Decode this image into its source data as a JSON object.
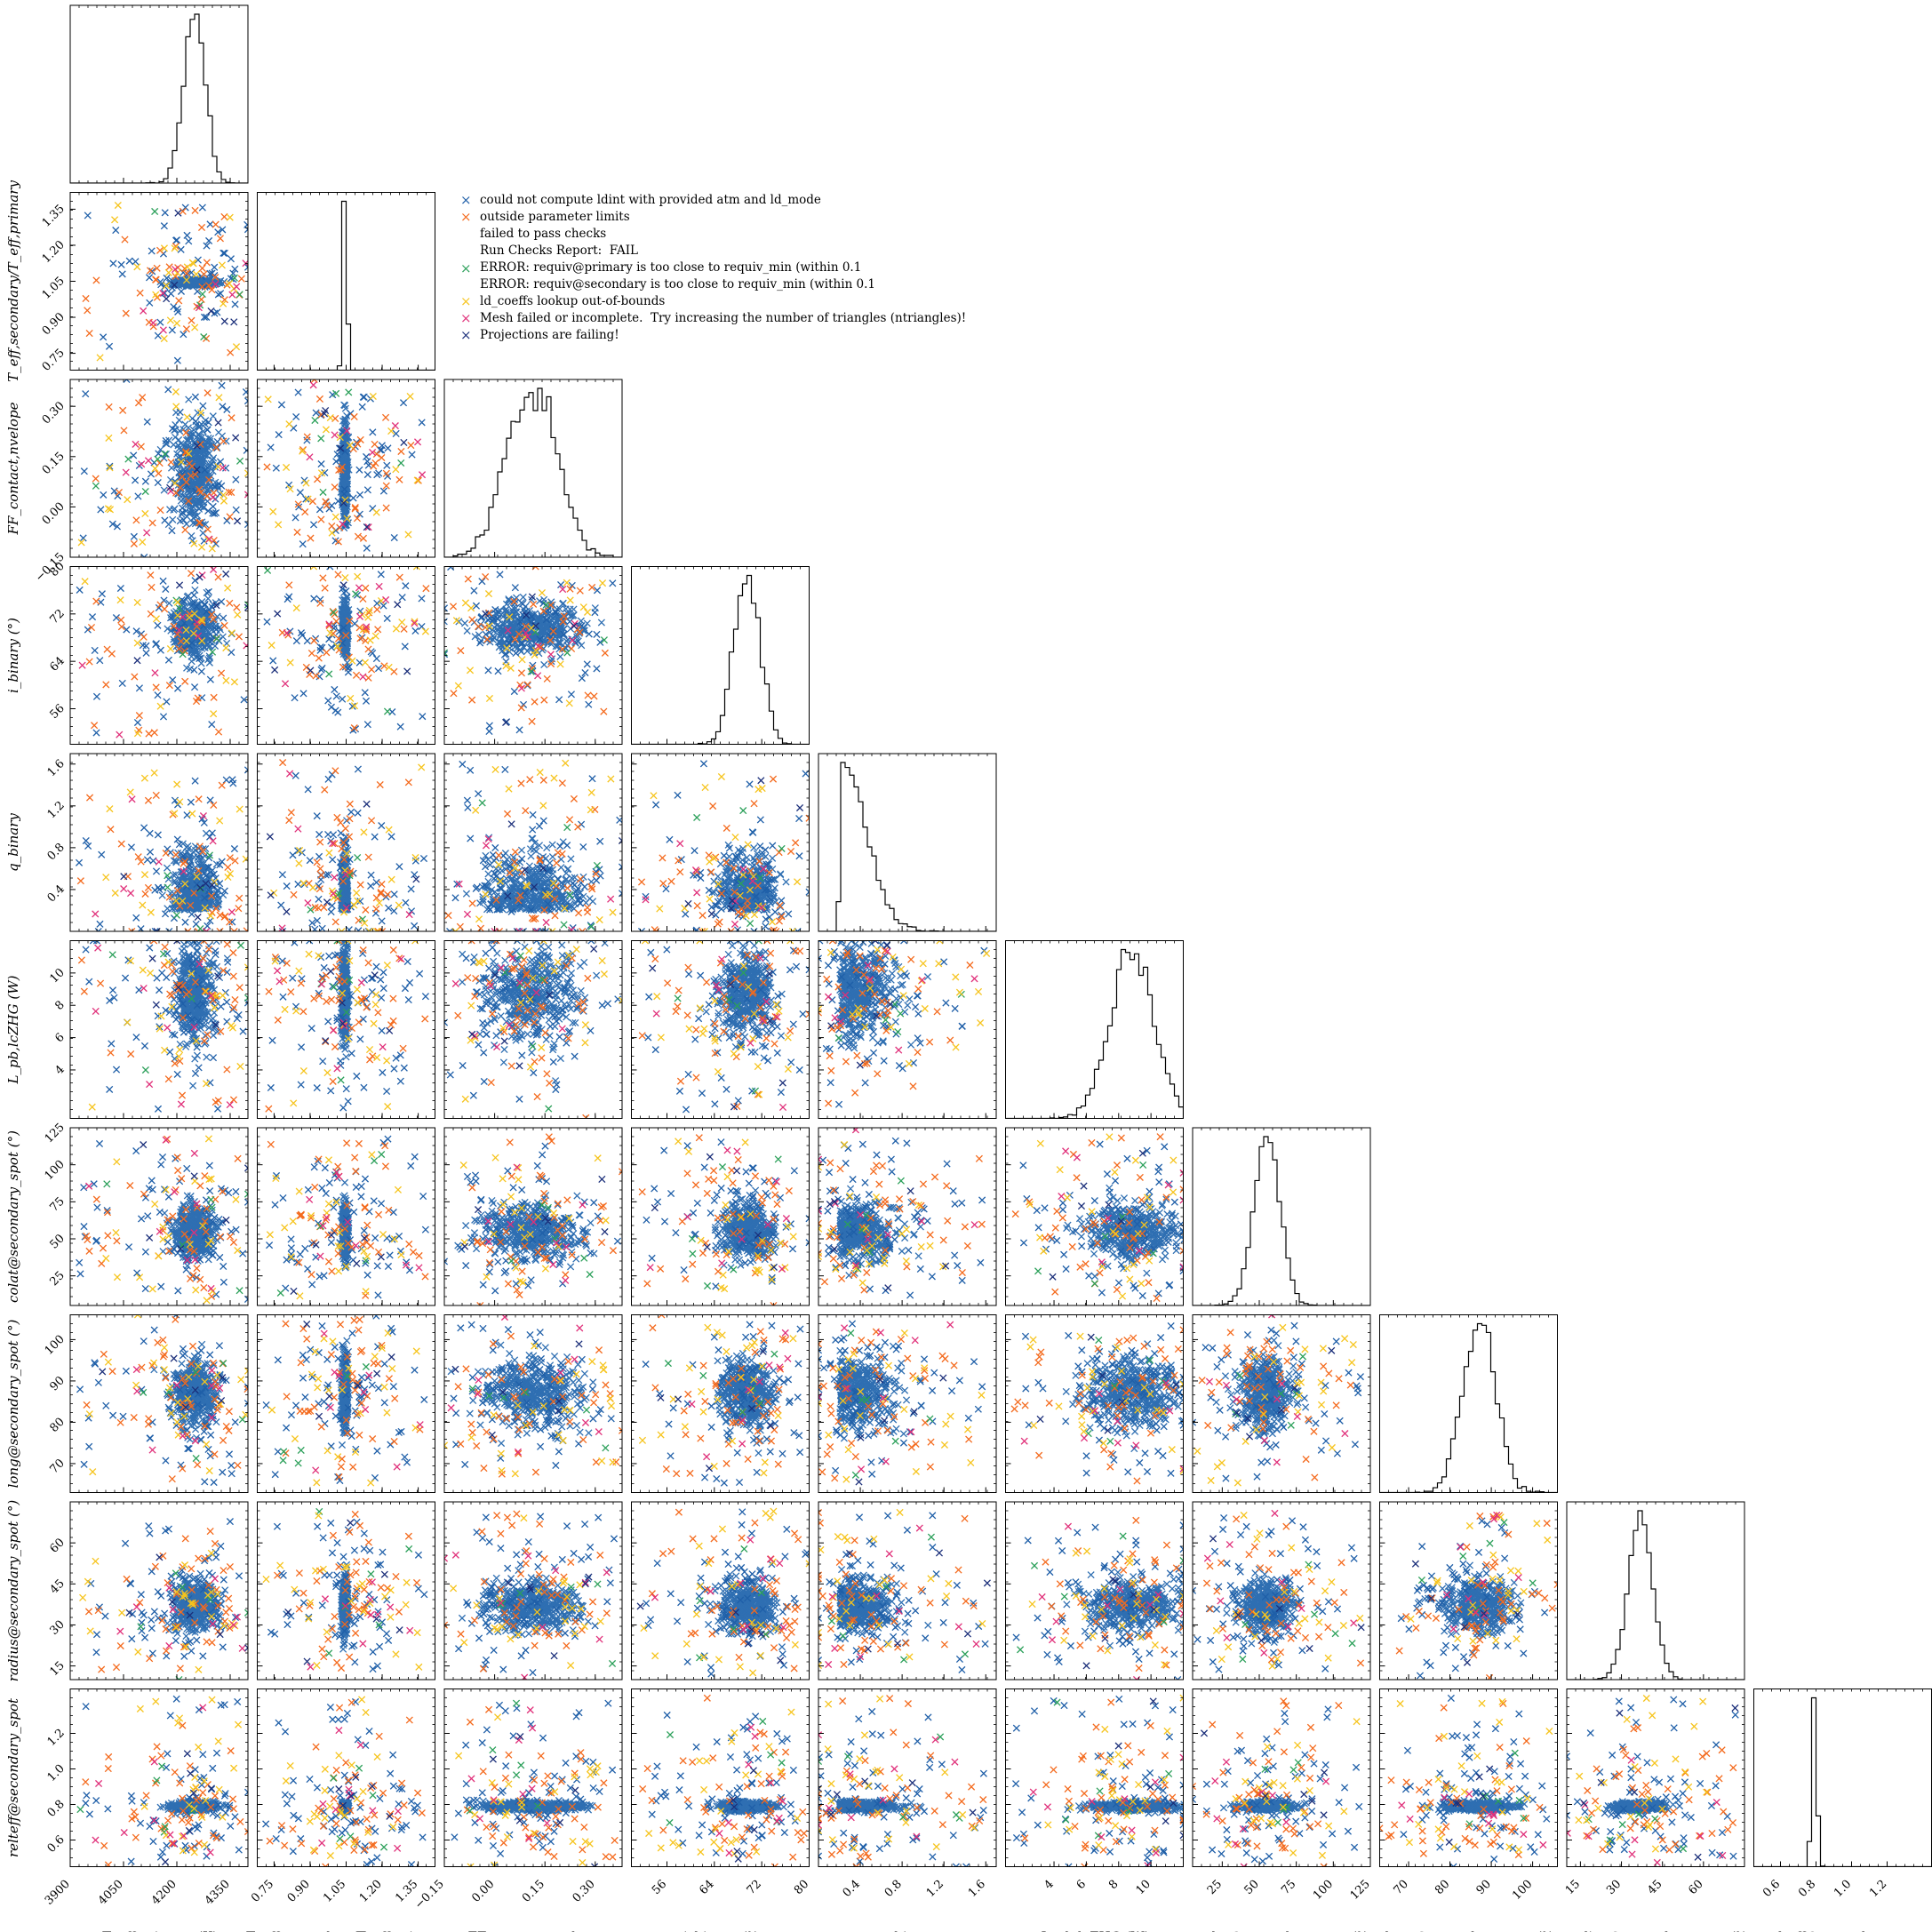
{
  "chart_data": {
    "type": "scatter",
    "kind": "corner-plot",
    "grid": false,
    "parameters": [
      {
        "key": "teff_primary",
        "label": "T_eff,primary (K)",
        "lim": [
          3900,
          4400
        ],
        "ticks": [
          3900,
          4050,
          4200,
          4350
        ]
      },
      {
        "key": "teff_ratio",
        "label": "T_eff,secondary/T_eff,primary",
        "lim": [
          0.68,
          1.42
        ],
        "ticks": [
          0.75,
          0.9,
          1.05,
          1.2,
          1.35
        ]
      },
      {
        "key": "ff",
        "label": "FF_contact,nvelope",
        "lim": [
          -0.15,
          0.38
        ],
        "ticks": [
          -0.15,
          0.0,
          0.15,
          0.3
        ]
      },
      {
        "key": "incl",
        "label": "i_binary (°)",
        "lim": [
          50,
          80
        ],
        "ticks": [
          56,
          64,
          72,
          80
        ]
      },
      {
        "key": "q",
        "label": "q_binary",
        "lim": [
          0.0,
          1.7
        ],
        "ticks": [
          0.4,
          0.8,
          1.2,
          1.6
        ]
      },
      {
        "key": "pb",
        "label": "L_pb,lcZHG (W)",
        "lim": [
          1,
          12
        ],
        "ticks": [
          4,
          6,
          8,
          10
        ]
      },
      {
        "key": "colat",
        "label": "colat@secondary_spot (°)",
        "lim": [
          5,
          125
        ],
        "ticks": [
          25,
          50,
          75,
          100,
          125
        ]
      },
      {
        "key": "long",
        "label": "long@secondary_spot (°)",
        "lim": [
          63,
          106
        ],
        "ticks": [
          70,
          80,
          90,
          100
        ]
      },
      {
        "key": "radius",
        "label": "radius@secondary_spot (°)",
        "lim": [
          10,
          75
        ],
        "ticks": [
          15,
          30,
          45,
          60
        ]
      },
      {
        "key": "relteff",
        "label": "relteff@secondary_spot",
        "lim": [
          0.45,
          1.45
        ],
        "ticks": [
          0.6,
          0.8,
          1.0,
          1.2
        ]
      }
    ],
    "diag_tick_labels": {
      "teff_ratio": [
        "1.35",
        "1.20",
        "1.05",
        "0.90",
        "0.75"
      ],
      "ff": [
        "0.30",
        "0.15",
        "0.00",
        "−0.15"
      ],
      "incl": [
        "80",
        "72",
        "64",
        "56"
      ],
      "q": [
        "1.6",
        "1.2",
        "0.8",
        "0.4"
      ],
      "pb": [
        "10",
        "8",
        "6",
        "4"
      ],
      "colat": [
        "125",
        "100",
        "75",
        "50",
        "25"
      ],
      "long": [
        "100",
        "90",
        "80",
        "70"
      ],
      "radius": [
        "60",
        "45",
        "30",
        "15"
      ],
      "relteff": [
        "1.2",
        "1.0",
        "0.8",
        "0.6"
      ]
    },
    "row_labels": [
      "T_eff,secondary/T_eff,primary",
      "FF_contact,nvelope",
      "i_binary (°)",
      "q_binary",
      "L_pb,lcZHG (W)",
      "colat@secondary_spot (°)",
      "long@secondary_spot (°)",
      "radius@secondary_spot (°)",
      "relteff@secondary_spot"
    ],
    "marginals": {
      "teff_primary": {
        "center": 4250,
        "width": 30,
        "shape": "single-peak"
      },
      "teff_ratio": {
        "center": 1.045,
        "width": 0.006,
        "shape": "single-peak"
      },
      "ff": {
        "center": 0.11,
        "width": 0.06,
        "shape": "double-peak"
      },
      "incl": {
        "center": 69.5,
        "width": 1.8,
        "shape": "double-peak"
      },
      "q": {
        "center": 0.25,
        "width": 0.15,
        "shape": "skewed"
      },
      "pb": {
        "center": 8.8,
        "width": 1.4,
        "shape": "multi-peak"
      },
      "colat": {
        "center": 55,
        "width": 9,
        "shape": "single-peak"
      },
      "long": {
        "center": 87,
        "width": 4,
        "shape": "single-peak"
      },
      "radius": {
        "center": 37,
        "width": 4.5,
        "shape": "single-peak"
      },
      "relteff": {
        "center": 0.79,
        "width": 0.012,
        "shape": "single-peak"
      }
    },
    "legend": {
      "placement": "upper-left of empty region",
      "entries": [
        {
          "text": "could not compute ldint with provided atm and ld_mode",
          "color": "#1f5fa8"
        },
        {
          "text": "outside parameter limits",
          "color": "#f46a1d"
        },
        {
          "text": "failed to pass checks\nRun Checks Report:  FAIL\nERROR: requiv@primary is too close to requiv_min (within 0.1\nERROR: requiv@secondary is too close to requiv_min (within 0.1",
          "color": "#2ca05a"
        },
        {
          "text": "ld_coeffs lookup out-of-bounds",
          "color": "#f6c41d"
        },
        {
          "text": "Mesh failed or incomplete.  Try increasing the number of triangles (ntriangles)!",
          "color": "#e0307a"
        },
        {
          "text": "Projections are failing!",
          "color": "#1b2f7a"
        }
      ]
    },
    "series_colors": {
      "posterior": "#2f6fb2",
      "good": "#000000"
    }
  }
}
